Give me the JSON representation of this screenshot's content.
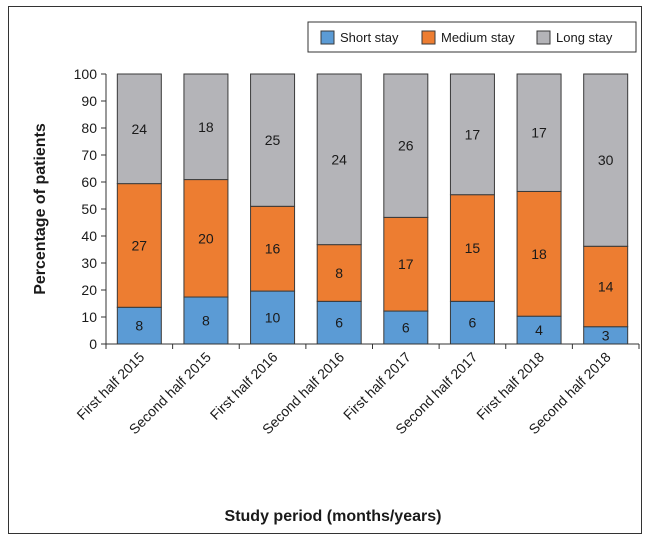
{
  "chart_data": {
    "type": "bar",
    "stacked": true,
    "percent_stacked": true,
    "categories": [
      "First half 2015",
      "Second half 2015",
      "First half 2016",
      "Second half 2016",
      "First half 2017",
      "Second half 2017",
      "First half 2018",
      "Second half 2018"
    ],
    "series": [
      {
        "name": "Short stay",
        "color": "#5b9bd5",
        "counts": [
          8,
          8,
          10,
          6,
          6,
          6,
          4,
          3
        ],
        "values": [
          13.6,
          17.4,
          19.6,
          15.8,
          12.2,
          15.8,
          10.3,
          6.4
        ]
      },
      {
        "name": "Medium stay",
        "color": "#ed7d31",
        "counts": [
          27,
          20,
          16,
          8,
          17,
          15,
          18,
          14
        ],
        "values": [
          45.8,
          43.5,
          31.4,
          21.0,
          34.7,
          39.5,
          46.2,
          29.8
        ]
      },
      {
        "name": "Long stay",
        "color": "#b4b4b8",
        "counts": [
          24,
          18,
          25,
          24,
          26,
          17,
          17,
          30
        ],
        "values": [
          40.6,
          39.1,
          49.0,
          63.2,
          53.1,
          44.7,
          43.5,
          63.8
        ]
      }
    ],
    "xlabel": "Study period (months/years)",
    "ylabel": "Percentage of patients",
    "ylim": [
      0,
      100
    ],
    "yticks": [
      0,
      10,
      20,
      30,
      40,
      50,
      60,
      70,
      80,
      90,
      100
    ],
    "grid": false,
    "legend": {
      "position": "top-right"
    }
  }
}
